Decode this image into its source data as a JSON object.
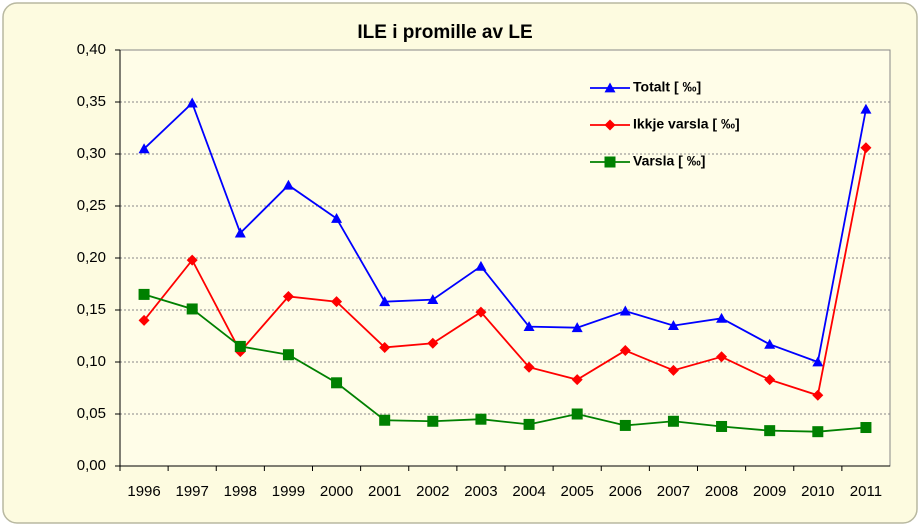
{
  "chart_data": {
    "type": "line",
    "title": "ILE i promille av LE",
    "categories": [
      "1996",
      "1997",
      "1998",
      "1999",
      "2000",
      "2001",
      "2002",
      "2003",
      "2004",
      "2005",
      "2006",
      "2007",
      "2008",
      "2009",
      "2010",
      "2011"
    ],
    "series": [
      {
        "name": "Totalt [ ‰]",
        "color": "#0000ff",
        "marker": "triangle",
        "values": [
          0.305,
          0.349,
          0.224,
          0.27,
          0.238,
          0.158,
          0.16,
          0.192,
          0.134,
          0.133,
          0.149,
          0.135,
          0.142,
          0.117,
          0.1,
          0.343
        ]
      },
      {
        "name": "Ikkje varsla [ ‰]",
        "color": "#ff0000",
        "marker": "diamond",
        "values": [
          0.14,
          0.198,
          0.11,
          0.163,
          0.158,
          0.114,
          0.118,
          0.148,
          0.095,
          0.083,
          0.111,
          0.092,
          0.105,
          0.083,
          0.068,
          0.306
        ]
      },
      {
        "name": "Varsla [ ‰]",
        "color": "#008000",
        "marker": "square",
        "values": [
          0.165,
          0.151,
          0.115,
          0.107,
          0.08,
          0.044,
          0.043,
          0.045,
          0.04,
          0.05,
          0.039,
          0.043,
          0.038,
          0.034,
          0.033,
          0.037
        ]
      }
    ],
    "ylim": [
      0,
      0.4
    ],
    "yticks": [
      {
        "value": 0,
        "label": "0,00"
      },
      {
        "value": 0.05,
        "label": "0,05"
      },
      {
        "value": 0.1,
        "label": "0,10"
      },
      {
        "value": 0.15,
        "label": "0,15"
      },
      {
        "value": 0.2,
        "label": "0,20"
      },
      {
        "value": 0.25,
        "label": "0,25"
      },
      {
        "value": 0.3,
        "label": "0,30"
      },
      {
        "value": 0.35,
        "label": "0,35"
      },
      {
        "value": 0.4,
        "label": "0,40"
      }
    ],
    "grid": true,
    "legend": "top-right"
  }
}
